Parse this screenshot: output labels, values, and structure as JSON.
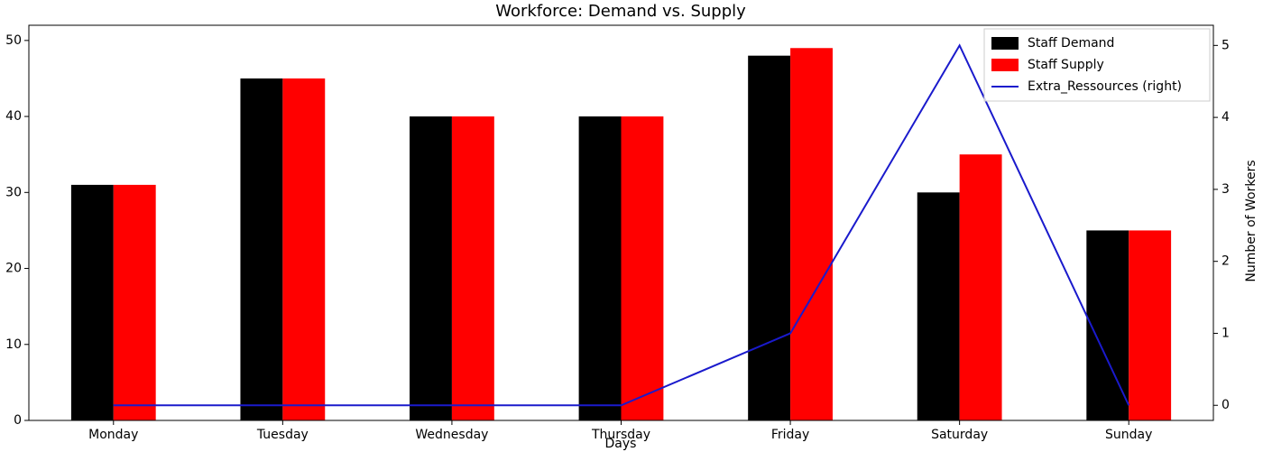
{
  "chart_data": {
    "type": "bar_line",
    "title": "Workforce: Demand vs. Supply",
    "x_label": "Days",
    "y2_label": "Number of Workers",
    "categories": [
      "Monday",
      "Tuesday",
      "Wednesday",
      "Thursday",
      "Friday",
      "Saturday",
      "Sunday"
    ],
    "series": [
      {
        "name": "Staff Demand",
        "color": "#000000",
        "type": "bar",
        "values": [
          31,
          45,
          40,
          40,
          48,
          30,
          25
        ]
      },
      {
        "name": "Staff Supply",
        "color": "#ff0000",
        "type": "bar",
        "values": [
          31,
          45,
          40,
          40,
          49,
          35,
          25
        ]
      },
      {
        "name": "Extra_Ressources (right)",
        "color": "#1a1acc",
        "type": "line",
        "axis": "y2",
        "values": [
          0,
          0,
          0,
          0,
          1,
          5,
          0
        ]
      }
    ],
    "ylim": [
      0,
      52
    ],
    "yticks": [
      0,
      10,
      20,
      30,
      40,
      50
    ],
    "y2lim": [
      -0.21,
      5.28
    ],
    "y2ticks": [
      0,
      1,
      2,
      3,
      4,
      5
    ],
    "legend": "upper right"
  }
}
